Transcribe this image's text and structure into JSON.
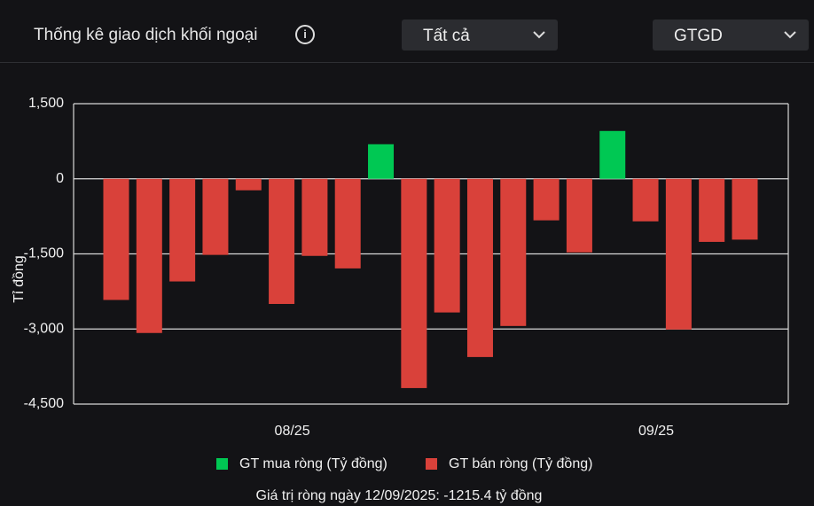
{
  "header": {
    "title": "Thống kê giao dịch khối ngoại",
    "filters": [
      "Tất cả",
      "GTGD"
    ]
  },
  "chart_data": {
    "type": "bar",
    "y_label": "Tỉ đồng",
    "categories": [
      null,
      null,
      null,
      null,
      null,
      "08/25",
      null,
      null,
      null,
      null,
      null,
      null,
      null,
      null,
      null,
      null,
      "09/25",
      null,
      null,
      null
    ],
    "series": [
      {
        "name": "GT mua ròng (Tỷ đồng)",
        "color": "#00c853",
        "values": [
          null,
          null,
          null,
          null,
          null,
          null,
          null,
          null,
          690,
          null,
          null,
          null,
          null,
          null,
          null,
          955,
          null,
          null,
          null,
          null
        ]
      },
      {
        "name": "GT bán ròng (Tỷ đồng)",
        "color": "#d9413a",
        "values": [
          -2420,
          -3080,
          -2050,
          -1520,
          -230,
          -2500,
          -1540,
          -1790,
          null,
          -4180,
          -2670,
          -3560,
          -2940,
          -830,
          -1470,
          null,
          -850,
          -3010,
          -1260,
          -1215.4
        ]
      }
    ],
    "ylim": [
      -4500,
      1500
    ],
    "yticks": [
      {
        "value": 1500,
        "label": "1,500"
      },
      0,
      {
        "value": -1500,
        "label": "-1,500"
      },
      {
        "value": -3000,
        "label": "-3,000"
      },
      {
        "value": -4500,
        "label": "-4,500"
      }
    ],
    "grid": true,
    "note": "Giá trị ròng ngày 12/09/2025: -1215.4 tỷ đồng"
  }
}
